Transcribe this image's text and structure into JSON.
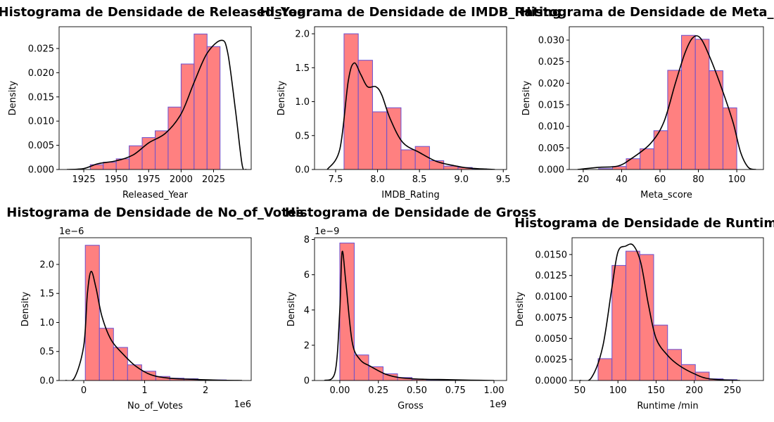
{
  "chart_data": [
    {
      "type": "histogram",
      "title": "Histograma de Densidade de Released_Year",
      "xlabel": "Released_Year",
      "ylabel": "Density",
      "bins": [
        1930,
        1940,
        1950,
        1960,
        1970,
        1980,
        1990,
        2000,
        2010,
        2020,
        2030
      ],
      "values": [
        0.001,
        0.0015,
        0.0022,
        0.0049,
        0.0066,
        0.008,
        0.0129,
        0.0218,
        0.028,
        0.0254
      ],
      "kde_x": [
        1912,
        1925,
        1936,
        1950,
        1963,
        1975,
        1988,
        2000,
        2010,
        2020,
        2031,
        2036,
        2042,
        2047,
        2050
      ],
      "kde_y": [
        0,
        0.0002,
        0.0012,
        0.0018,
        0.003,
        0.0055,
        0.0075,
        0.0115,
        0.018,
        0.024,
        0.0267,
        0.024,
        0.012,
        0.001,
        0
      ],
      "color": "#ff8080",
      "edgecolor": "#6a4fd0",
      "kde_color": "#000000",
      "xlim": [
        1906,
        2054
      ],
      "xticks": [
        1925,
        1950,
        1975,
        2000,
        2025
      ],
      "ylim": [
        0,
        0.0295
      ],
      "yticks": [
        {
          "value": 0,
          "label": "0.000"
        },
        0.005,
        {
          "value": 0.01,
          "label": "0.010"
        },
        0.015,
        {
          "value": 0.02,
          "label": "0.020"
        },
        0.025
      ]
    },
    {
      "type": "histogram",
      "title": "Histograma de Densidade de IMDB_Rating",
      "xlabel": "IMDB_Rating",
      "ylabel": "Density",
      "bins": [
        7.6,
        7.77,
        7.94,
        8.11,
        8.28,
        8.45,
        8.62,
        8.79,
        8.96,
        9.13,
        9.3
      ],
      "values": [
        2.0,
        1.61,
        0.85,
        0.91,
        0.29,
        0.34,
        0.13,
        0.05,
        0.03,
        0.01
      ],
      "kde_x": [
        7.4,
        7.55,
        7.65,
        7.72,
        7.8,
        7.88,
        7.98,
        8.05,
        8.15,
        8.3,
        8.5,
        8.7,
        8.9,
        9.1,
        9.4
      ],
      "kde_y": [
        0,
        0.3,
        1.3,
        1.57,
        1.4,
        1.22,
        1.22,
        1.1,
        0.75,
        0.4,
        0.25,
        0.12,
        0.06,
        0.02,
        0
      ],
      "color": "#ff8080",
      "edgecolor": "#6a4fd0",
      "kde_color": "#000000",
      "xlim": [
        7.248,
        9.54
      ],
      "xticks": [
        7.5,
        {
          "value": 8,
          "label": "8.0"
        },
        8.5,
        {
          "value": 9,
          "label": "9.0"
        },
        9.5
      ],
      "ylim": [
        0,
        2.104
      ],
      "yticks": [
        {
          "value": 0,
          "label": "0.0"
        },
        0.5,
        {
          "value": 1,
          "label": "1.0"
        },
        1.5,
        {
          "value": 2,
          "label": "2.0"
        }
      ]
    },
    {
      "type": "histogram",
      "title": "Histograma de Densidade de Meta_score",
      "xlabel": "Meta_score",
      "ylabel": "Density",
      "bins": [
        28,
        35.2,
        42.4,
        49.6,
        56.8,
        64,
        71.2,
        78.4,
        85.6,
        92.8,
        100
      ],
      "values": [
        0.0002,
        0.0007,
        0.0025,
        0.0048,
        0.009,
        0.023,
        0.0311,
        0.0302,
        0.0229,
        0.0143
      ],
      "kde_x": [
        17,
        28,
        38,
        45,
        55,
        62,
        68,
        73,
        77,
        81,
        86,
        92,
        98,
        102,
        106,
        110
      ],
      "kde_y": [
        0,
        0.0005,
        0.0008,
        0.0025,
        0.006,
        0.011,
        0.02,
        0.027,
        0.0305,
        0.0305,
        0.026,
        0.019,
        0.011,
        0.004,
        0.0005,
        0
      ],
      "color": "#ff8080",
      "edgecolor": "#6a4fd0",
      "kde_color": "#000000",
      "xlim": [
        12.7,
        113.9
      ],
      "xticks": [
        20,
        40,
        60,
        80,
        100
      ],
      "ylim": [
        0,
        0.0331
      ],
      "yticks": [
        {
          "value": 0,
          "label": "0.000"
        },
        0.005,
        {
          "value": 0.01,
          "label": "0.010"
        },
        0.015,
        {
          "value": 0.02,
          "label": "0.020"
        },
        0.025,
        {
          "value": 0.03,
          "label": "0.030"
        }
      ]
    },
    {
      "type": "histogram",
      "title": "Histograma de Densidade de No_of_Votes",
      "xlabel": "No_of_Votes",
      "ylabel": "Density",
      "x_offset": "1e6",
      "y_offset": "1e−6",
      "bins": [
        0.025,
        0.2566,
        0.4882,
        0.7198,
        0.9514,
        1.183,
        1.4146,
        1.6462,
        1.8778,
        2.1094,
        2.341
      ],
      "values": [
        2.33,
        0.9,
        0.57,
        0.27,
        0.16,
        0.07,
        0.04,
        0.03,
        0.01,
        0.01
      ],
      "kde_x": [
        -0.3,
        -0.15,
        0,
        0.06,
        0.12,
        0.2,
        0.3,
        0.45,
        0.65,
        0.85,
        1.1,
        1.4,
        1.8,
        2.2,
        2.6
      ],
      "kde_y": [
        0,
        0.05,
        0.6,
        1.5,
        1.88,
        1.6,
        1.1,
        0.7,
        0.45,
        0.25,
        0.1,
        0.04,
        0.02,
        0.005,
        0
      ],
      "color": "#ff8080",
      "edgecolor": "#6a4fd0",
      "kde_color": "#000000",
      "xlim": [
        -0.405,
        2.75
      ],
      "xticks": [
        0,
        1,
        2
      ],
      "ylim": [
        0,
        2.46
      ],
      "yticks": [
        {
          "value": 0,
          "label": "0.0"
        },
        0.5,
        {
          "value": 1,
          "label": "1.0"
        },
        1.5,
        {
          "value": 2,
          "label": "2.0"
        }
      ]
    },
    {
      "type": "histogram",
      "title": "Histograma de Densidade de Gross",
      "xlabel": "Gross",
      "ylabel": "Density",
      "x_offset": "1e9",
      "y_offset": "1e−9",
      "bins": [
        0,
        0.0936,
        0.1872,
        0.2808,
        0.3744,
        0.468,
        0.5616,
        0.6552,
        0.7488,
        0.8424,
        0.936
      ],
      "values": [
        7.8,
        1.45,
        0.78,
        0.38,
        0.17,
        0.07,
        0.03,
        0.02,
        0.01,
        0.01
      ],
      "kde_x": [
        -0.1,
        -0.03,
        0,
        0.015,
        0.04,
        0.08,
        0.13,
        0.2,
        0.3,
        0.4,
        0.55,
        0.7,
        0.85,
        1.0
      ],
      "kde_y": [
        0,
        0.5,
        4,
        7.3,
        5.5,
        2.2,
        1.2,
        0.8,
        0.35,
        0.15,
        0.07,
        0.05,
        0.02,
        0
      ],
      "color": "#ff8080",
      "edgecolor": "#6a4fd0",
      "kde_color": "#000000",
      "xlim": [
        -0.164,
        1.082
      ],
      "xticks": [
        {
          "value": 0,
          "label": "0.00"
        },
        0.25,
        {
          "value": 0.5,
          "label": "0.50"
        },
        0.75,
        {
          "value": 1,
          "label": "1.00"
        }
      ],
      "ylim": [
        0,
        8.1
      ],
      "yticks": [
        0,
        2,
        4,
        6,
        8
      ]
    },
    {
      "type": "histogram",
      "title": "Histograma de Densidade de Runtime /min",
      "xlabel": "Runtime /min",
      "ylabel": "Density",
      "bins": [
        74,
        92.2,
        110.4,
        128.6,
        146.8,
        165,
        183.2,
        201.4,
        219.6,
        237.8,
        256
      ],
      "values": [
        0.0026,
        0.0137,
        0.0154,
        0.015,
        0.0066,
        0.0037,
        0.0019,
        0.001,
        0.0002,
        0.0001
      ],
      "kde_x": [
        50,
        65,
        80,
        92,
        100,
        110,
        120,
        130,
        140,
        150,
        165,
        180,
        200,
        220,
        260
      ],
      "kde_y": [
        0,
        0.0003,
        0.004,
        0.011,
        0.0153,
        0.016,
        0.0161,
        0.014,
        0.009,
        0.005,
        0.003,
        0.0018,
        0.0008,
        0.0002,
        0
      ],
      "color": "#ff8080",
      "edgecolor": "#6a4fd0",
      "kde_color": "#000000",
      "xlim": [
        39.9,
        290.6
      ],
      "xticks": [
        50,
        100,
        150,
        200,
        250
      ],
      "ylim": [
        0,
        0.017
      ],
      "yticks": [
        {
          "value": 0,
          "label": "0.0000"
        },
        0.0025,
        {
          "value": 0.005,
          "label": "0.0050"
        },
        0.0075,
        {
          "value": 0.01,
          "label": "0.0100"
        },
        0.0125,
        {
          "value": 0.015,
          "label": "0.0150"
        }
      ]
    }
  ]
}
